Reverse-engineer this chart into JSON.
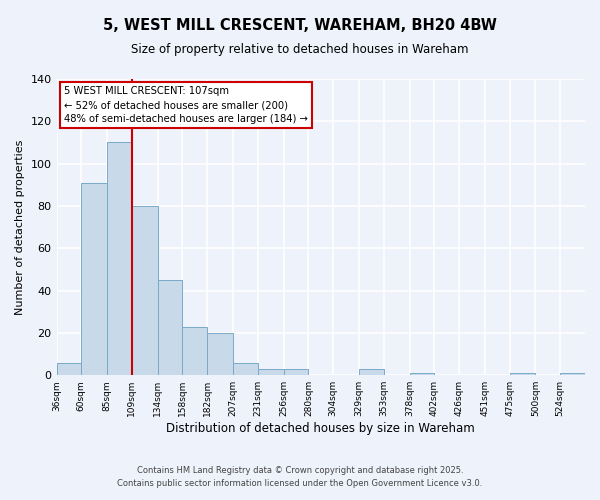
{
  "title": "5, WEST MILL CRESCENT, WAREHAM, BH20 4BW",
  "subtitle": "Size of property relative to detached houses in Wareham",
  "xlabel": "Distribution of detached houses by size in Wareham",
  "ylabel": "Number of detached properties",
  "bar_color": "#c8daea",
  "bar_edge_color": "#7aaac8",
  "background_color": "#eef2fa",
  "grid_color": "#ffffff",
  "bin_labels": [
    "36sqm",
    "60sqm",
    "85sqm",
    "109sqm",
    "134sqm",
    "158sqm",
    "182sqm",
    "207sqm",
    "231sqm",
    "256sqm",
    "280sqm",
    "304sqm",
    "329sqm",
    "353sqm",
    "378sqm",
    "402sqm",
    "426sqm",
    "451sqm",
    "475sqm",
    "500sqm",
    "524sqm"
  ],
  "bar_values": [
    6,
    91,
    110,
    80,
    45,
    23,
    20,
    6,
    3,
    3,
    0,
    0,
    3,
    0,
    1,
    0,
    0,
    0,
    1,
    0,
    1
  ],
  "ylim": [
    0,
    140
  ],
  "yticks": [
    0,
    20,
    40,
    60,
    80,
    100,
    120,
    140
  ],
  "annotation_line1": "5 WEST MILL CRESCENT: 107sqm",
  "annotation_line2": "← 52% of detached houses are smaller (200)",
  "annotation_line3": "48% of semi-detached houses are larger (184) →",
  "vline_color": "#cc0000",
  "annotation_box_color": "#ffffff",
  "annotation_box_edge": "#cc0000",
  "footer_line1": "Contains HM Land Registry data © Crown copyright and database right 2025.",
  "footer_line2": "Contains public sector information licensed under the Open Government Licence v3.0.",
  "bin_edges": [
    36,
    60,
    85,
    109,
    134,
    158,
    182,
    207,
    231,
    256,
    280,
    304,
    329,
    353,
    378,
    402,
    426,
    451,
    475,
    500,
    524,
    548
  ],
  "vline_x": 109
}
